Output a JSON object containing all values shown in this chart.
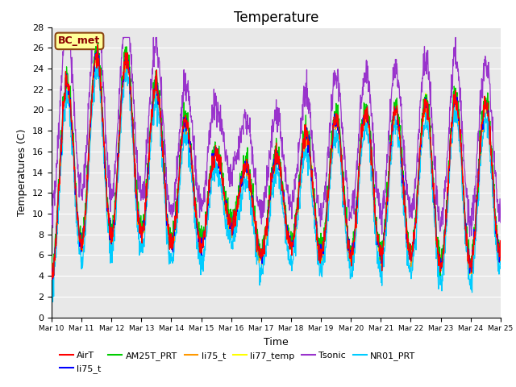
{
  "title": "Temperature",
  "ylabel": "Temperatures (C)",
  "xlabel": "Time",
  "annotation": "BC_met",
  "ylim": [
    0,
    28
  ],
  "yticks": [
    0,
    2,
    4,
    6,
    8,
    10,
    12,
    14,
    16,
    18,
    20,
    22,
    24,
    26,
    28
  ],
  "xtick_labels": [
    "Mar 10",
    "Mar 11",
    "Mar 12",
    "Mar 13",
    "Mar 14",
    "Mar 15",
    "Mar 16",
    "Mar 17",
    "Mar 18",
    "Mar 19",
    "Mar 20",
    "Mar 21",
    "Mar 22",
    "Mar 23",
    "Mar 24",
    "Mar 25"
  ],
  "series": [
    {
      "name": "AirT",
      "color": "#ff0000"
    },
    {
      "name": "li75_t",
      "color": "#0000ff"
    },
    {
      "name": "AM25T_PRT",
      "color": "#00cc00"
    },
    {
      "name": "li75_t",
      "color": "#ff9900"
    },
    {
      "name": "li77_temp",
      "color": "#ffff00"
    },
    {
      "name": "Tsonic",
      "color": "#9933cc"
    },
    {
      "name": "NR01_PRT",
      "color": "#00ccff"
    }
  ],
  "bg_color": "#e8e8e8",
  "title_fontsize": 12,
  "axis_fontsize": 9,
  "tick_fontsize": 8
}
